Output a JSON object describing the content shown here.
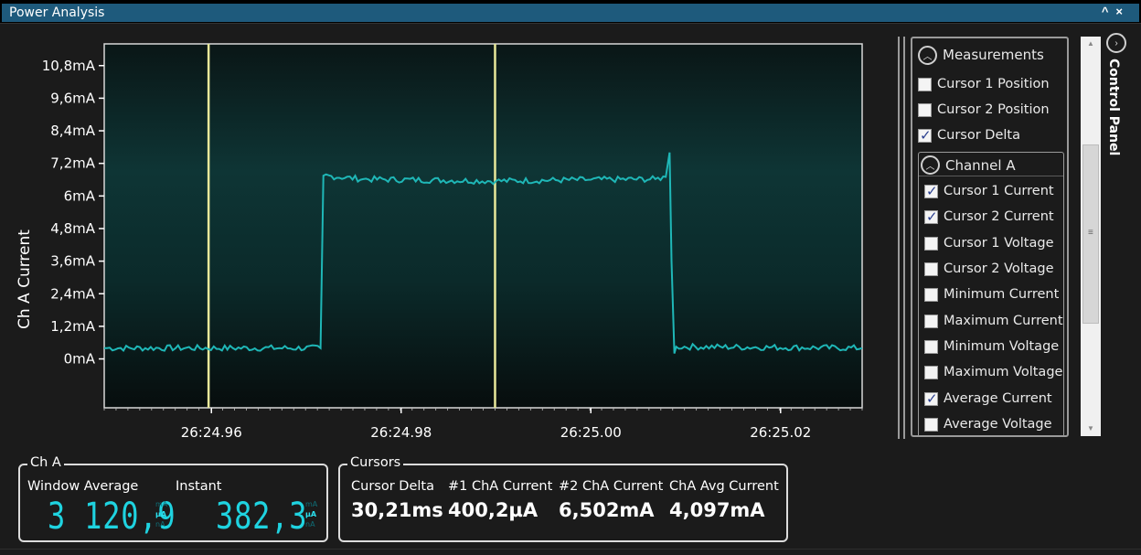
{
  "window": {
    "title": "Power Analysis",
    "controls": [
      "^",
      "×"
    ]
  },
  "chart_data": {
    "type": "line",
    "ylabel": "Ch A Current",
    "xlabel": "",
    "y_tick_labels": [
      "10,8mA",
      "9,6mA",
      "8,4mA",
      "7,2mA",
      "6mA",
      "4,8mA",
      "3,6mA",
      "2,4mA",
      "1,2mA",
      "0mA"
    ],
    "y_ticks": [
      10.8,
      9.6,
      8.4,
      7.2,
      6.0,
      4.8,
      3.6,
      2.4,
      1.2,
      0.0
    ],
    "ylim": [
      -1.8,
      11.6
    ],
    "x_tick_labels": [
      "26:24.96",
      "26:24.98",
      "26:25.00",
      "26:25.02"
    ],
    "x_ticks": [
      0.96,
      0.98,
      1.0,
      1.02
    ],
    "xlim": [
      0.9487,
      1.0286
    ],
    "grid": false,
    "series": [
      {
        "color": "#1fb7b7",
        "points": [
          [
            0.9487,
            0.4
          ],
          [
            0.9715,
            0.4
          ],
          [
            0.9718,
            6.75
          ],
          [
            0.976,
            6.62
          ],
          [
            0.99,
            6.55
          ],
          [
            1.0,
            6.6
          ],
          [
            1.0068,
            6.62
          ],
          [
            1.0079,
            6.7
          ],
          [
            1.0083,
            7.6
          ],
          [
            1.0085,
            3.6
          ],
          [
            1.0088,
            0.2
          ],
          [
            1.009,
            0.45
          ],
          [
            1.0286,
            0.4
          ]
        ]
      }
    ],
    "cursors": [
      {
        "x": 0.9597,
        "color": "#e8e89a"
      },
      {
        "x": 0.9899,
        "color": "#e8e89a"
      }
    ]
  },
  "measurements": {
    "title": "Measurements",
    "items": [
      {
        "label": "Cursor 1 Position",
        "checked": false
      },
      {
        "label": "Cursor 2 Position",
        "checked": false
      },
      {
        "label": "Cursor Delta",
        "checked": true
      }
    ],
    "channel": {
      "title": "Channel A",
      "items": [
        {
          "label": "Cursor 1 Current",
          "checked": true
        },
        {
          "label": "Cursor 2 Current",
          "checked": true
        },
        {
          "label": "Cursor 1 Voltage",
          "checked": false
        },
        {
          "label": "Cursor 2 Voltage",
          "checked": false
        },
        {
          "label": "Minimum Current",
          "checked": false
        },
        {
          "label": "Maximum Current",
          "checked": false
        },
        {
          "label": "Minimum Voltage",
          "checked": false
        },
        {
          "label": "Maximum Voltage",
          "checked": false
        },
        {
          "label": "Average Current",
          "checked": true
        },
        {
          "label": "Average Voltage",
          "checked": false
        }
      ]
    }
  },
  "control_panel": {
    "label": "Control Panel"
  },
  "cha_box": {
    "legend": "Ch A",
    "window_average_label": "Window Average",
    "window_average_value": "3 120,9",
    "instant_label": "Instant",
    "instant_value": "382,3",
    "unit_top": "mA",
    "unit_mid": "µA",
    "unit_bot": "nA"
  },
  "cursors_box": {
    "legend": "Cursors",
    "fields": [
      {
        "label": "Cursor Delta",
        "value": "30,21ms"
      },
      {
        "label": "#1 ChA Current",
        "value": "400,2µA"
      },
      {
        "label": "#2 ChA Current",
        "value": "6,502mA"
      },
      {
        "label": "ChA Avg Current",
        "value": "4,097mA"
      }
    ]
  }
}
